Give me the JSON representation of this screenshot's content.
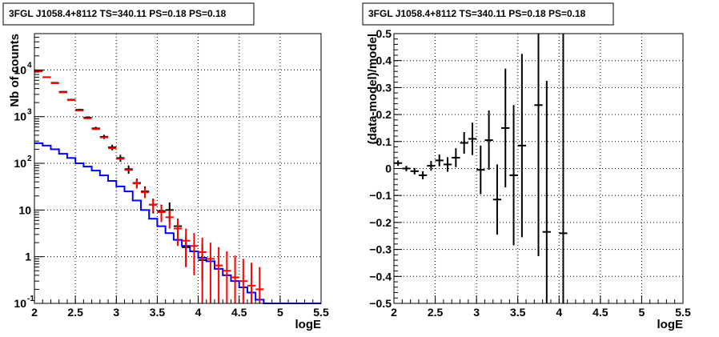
{
  "chart_data": [
    {
      "type": "line",
      "title": "3FGL J1058.4+8112 TS=340.11 PS=0.18 PS=0.18",
      "xlabel": "logE",
      "ylabel": "Nb of counts",
      "xlim": [
        2,
        5.5
      ],
      "ylim": [
        0.1,
        60000
      ],
      "yscale": "log",
      "grid": true,
      "xticks": [
        "2",
        "2.5",
        "3",
        "3.5",
        "4",
        "4.5",
        "5",
        "5.5"
      ],
      "yticks": [
        {
          "value": 0.1,
          "label": "10",
          "exp": "-1"
        },
        {
          "value": 1,
          "label": "1",
          "exp": ""
        },
        {
          "value": 10,
          "label": "10",
          "exp": ""
        },
        {
          "value": 100,
          "label": "10",
          "exp": "2"
        },
        {
          "value": 1000,
          "label": "10",
          "exp": "3"
        },
        {
          "value": 10000,
          "label": "10",
          "exp": "4"
        }
      ],
      "series": [
        {
          "kind": "step",
          "color": "#0000ff",
          "x_edges": [
            2.0,
            2.1,
            2.2,
            2.3,
            2.4,
            2.5,
            2.6,
            2.7,
            2.8,
            2.9,
            3.0,
            3.1,
            3.2,
            3.3,
            3.4,
            3.5,
            3.6,
            3.7,
            3.8,
            3.9,
            4.0,
            4.1,
            4.2,
            4.3,
            4.4,
            4.5,
            4.6,
            4.7,
            4.8,
            4.9,
            5.0,
            5.1,
            5.2,
            5.3,
            5.4,
            5.5
          ],
          "values": [
            270,
            240,
            200,
            160,
            130,
            100,
            85,
            70,
            55,
            42,
            32,
            25,
            16,
            10,
            6.5,
            4.5,
            3.2,
            2.3,
            1.7,
            1.3,
            0.95,
            0.8,
            0.55,
            0.4,
            0.3,
            0.22,
            0.17,
            0.12,
            0.1,
            0.1,
            0.1,
            0.1,
            0.1,
            0.1,
            0.1
          ]
        },
        {
          "kind": "errorbars",
          "color": "#000000",
          "x": [
            2.05,
            2.15,
            2.25,
            2.35,
            2.45,
            2.55,
            2.65,
            2.75,
            2.85,
            2.95,
            3.05,
            3.15,
            3.25,
            3.35,
            3.45,
            3.55,
            3.65,
            3.75,
            3.85,
            4.05
          ],
          "y": [
            9500,
            7000,
            5300,
            3400,
            2300,
            1400,
            950,
            560,
            370,
            220,
            130,
            75,
            38,
            25,
            13,
            9.5,
            10,
            4.5,
            1.6,
            0.85
          ],
          "err_low": [
            200,
            170,
            150,
            120,
            100,
            75,
            60,
            45,
            38,
            30,
            22,
            15,
            9,
            7,
            4.5,
            3.5,
            4.5,
            2,
            1.0,
            0.55
          ],
          "err_high": [
            200,
            170,
            150,
            120,
            100,
            75,
            60,
            45,
            38,
            30,
            22,
            15,
            9,
            7,
            4.5,
            3.5,
            4.5,
            2,
            1.2,
            1.0
          ]
        },
        {
          "kind": "errorbars",
          "color": "#ff0000",
          "x": [
            2.05,
            2.15,
            2.25,
            2.35,
            2.45,
            2.55,
            2.65,
            2.75,
            2.85,
            2.95,
            3.05,
            3.15,
            3.25,
            3.35,
            3.45,
            3.55,
            3.65,
            3.75,
            3.85,
            3.95,
            4.05,
            4.15,
            4.25,
            4.35,
            4.45,
            4.55,
            4.65,
            4.75
          ],
          "y": [
            9300,
            7000,
            5200,
            3300,
            2250,
            1350,
            920,
            540,
            360,
            210,
            125,
            72,
            37,
            24,
            13,
            9,
            7,
            4,
            2.2,
            1.7,
            1.25,
            0.9,
            0.65,
            0.5,
            0.36,
            0.3,
            0.24,
            0.2
          ],
          "err_low": [
            0,
            0,
            0,
            0,
            0,
            0,
            0,
            0,
            0,
            0,
            0,
            0,
            8,
            6,
            4,
            3.5,
            3,
            2.3,
            1.6,
            1.3,
            1.15,
            0.85,
            0.63,
            0.49,
            0.355,
            0.299,
            0.239,
            0.199
          ],
          "err_high": [
            0,
            0,
            0,
            0,
            0,
            0,
            0,
            0,
            0,
            0,
            0,
            0,
            8,
            6,
            4,
            3.5,
            3,
            2.3,
            1.8,
            1.5,
            1.3,
            1.1,
            0.95,
            0.8,
            0.7,
            0.6,
            0.5,
            0.4
          ]
        }
      ]
    },
    {
      "type": "scatter",
      "title": "3FGL J1058.4+8112 TS=340.11 PS=0.18 PS=0.18",
      "xlabel": "logE",
      "ylabel": "(data-model)/model",
      "xlim": [
        2,
        5.5
      ],
      "ylim": [
        -0.5,
        0.5
      ],
      "grid": true,
      "xticks": [
        "2",
        "2.5",
        "3",
        "3.5",
        "4",
        "4.5",
        "5",
        "5.5"
      ],
      "yticks": [
        "0.5",
        "0.4",
        "0.3",
        "0.2",
        "0.1",
        "0",
        "−0.1",
        "−0.2",
        "−0.3",
        "−0.4",
        "−0.5"
      ],
      "series": [
        {
          "kind": "errorbars",
          "color": "#000000",
          "x": [
            2.05,
            2.15,
            2.25,
            2.35,
            2.45,
            2.55,
            2.65,
            2.75,
            2.85,
            2.95,
            3.05,
            3.15,
            3.25,
            3.35,
            3.45,
            3.55,
            3.75,
            3.85,
            4.05
          ],
          "y": [
            0.02,
            0.0,
            -0.01,
            -0.025,
            0.01,
            0.03,
            0.015,
            0.04,
            0.095,
            0.11,
            -0.005,
            0.105,
            -0.115,
            0.15,
            -0.025,
            0.085,
            0.235,
            -0.235,
            -0.24
          ],
          "err": [
            0.01,
            0.01,
            0.012,
            0.015,
            0.018,
            0.022,
            0.027,
            0.035,
            0.04,
            0.06,
            0.09,
            0.11,
            0.13,
            0.22,
            0.26,
            0.34,
            0.56,
            0.56,
            0.8
          ]
        }
      ]
    }
  ]
}
